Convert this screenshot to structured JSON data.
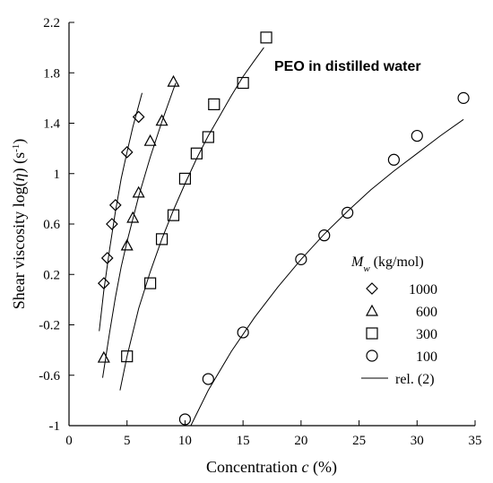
{
  "chart_data": {
    "type": "scatter",
    "title": "PEO in distilled water",
    "xlabel": {
      "main": "Concentration ",
      "var": "c",
      "unit": " (%)"
    },
    "ylabel": {
      "main": "Shear viscosity log(",
      "var": "η",
      "unit": ") (s",
      "sup": "-1",
      "close": ")"
    },
    "xlim": [
      0,
      35
    ],
    "ylim": [
      -1,
      2.2
    ],
    "x_ticks": [
      0,
      5,
      10,
      15,
      20,
      25,
      30,
      35
    ],
    "x_tick_labels": [
      "0",
      "5",
      "10",
      "15",
      "20",
      "25",
      "30",
      "35"
    ],
    "y_ticks": [
      -1,
      -0.6,
      -0.2,
      0.2,
      0.6,
      1,
      1.4,
      1.8,
      2.2
    ],
    "y_tick_labels": [
      "-1",
      "-0.6",
      "-0.2",
      "0.2",
      "0.6",
      "1",
      "1.4",
      "1.8",
      "2.2"
    ],
    "grid": false,
    "legend": {
      "position": "bottom-right",
      "title_main": "M",
      "title_sub": "w",
      "title_unit": " (kg/mol)",
      "entries": [
        {
          "label": "1000",
          "marker": "diamond"
        },
        {
          "label": "600",
          "marker": "triangle"
        },
        {
          "label": "300",
          "marker": "square"
        },
        {
          "label": "100",
          "marker": "circle"
        },
        {
          "label": "rel. (2)",
          "marker": "line"
        }
      ]
    },
    "series": [
      {
        "name": "1000",
        "marker": "diamond",
        "points": [
          [
            3.0,
            0.13
          ],
          [
            3.3,
            0.33
          ],
          [
            3.7,
            0.6
          ],
          [
            4.0,
            0.75
          ],
          [
            5.0,
            1.17
          ],
          [
            6.0,
            1.45
          ]
        ],
        "fit": [
          [
            2.6,
            -0.25
          ],
          [
            3.0,
            0.07
          ],
          [
            3.5,
            0.4
          ],
          [
            4.0,
            0.7
          ],
          [
            4.5,
            0.96
          ],
          [
            5.0,
            1.17
          ],
          [
            5.5,
            1.37
          ],
          [
            6.0,
            1.54
          ],
          [
            6.3,
            1.64
          ]
        ]
      },
      {
        "name": "600",
        "marker": "triangle",
        "points": [
          [
            3.0,
            -0.46
          ],
          [
            5.0,
            0.43
          ],
          [
            5.5,
            0.65
          ],
          [
            6.0,
            0.85
          ],
          [
            7.0,
            1.26
          ],
          [
            8.0,
            1.42
          ],
          [
            9.0,
            1.73
          ]
        ],
        "fit": [
          [
            2.9,
            -0.62
          ],
          [
            3.5,
            -0.26
          ],
          [
            4.0,
            0.02
          ],
          [
            4.5,
            0.26
          ],
          [
            5.0,
            0.46
          ],
          [
            5.5,
            0.64
          ],
          [
            6.0,
            0.82
          ],
          [
            7.0,
            1.13
          ],
          [
            8.0,
            1.41
          ],
          [
            9.0,
            1.67
          ],
          [
            9.2,
            1.72
          ]
        ]
      },
      {
        "name": "300",
        "marker": "square",
        "points": [
          [
            5.0,
            -0.45
          ],
          [
            7.0,
            0.13
          ],
          [
            8.0,
            0.48
          ],
          [
            9.0,
            0.67
          ],
          [
            10.0,
            0.96
          ],
          [
            11.0,
            1.16
          ],
          [
            12.0,
            1.29
          ],
          [
            12.5,
            1.55
          ],
          [
            15.0,
            1.72
          ],
          [
            17.0,
            2.08
          ]
        ],
        "fit": [
          [
            4.4,
            -0.72
          ],
          [
            5.0,
            -0.45
          ],
          [
            6.0,
            -0.07
          ],
          [
            7.0,
            0.22
          ],
          [
            8.0,
            0.48
          ],
          [
            9.0,
            0.71
          ],
          [
            10.0,
            0.92
          ],
          [
            11.0,
            1.12
          ],
          [
            12.0,
            1.3
          ],
          [
            13.0,
            1.46
          ],
          [
            14.0,
            1.62
          ],
          [
            15.0,
            1.77
          ],
          [
            16.0,
            1.9
          ],
          [
            16.8,
            2.0
          ]
        ]
      },
      {
        "name": "100",
        "marker": "circle",
        "points": [
          [
            10.0,
            -0.95
          ],
          [
            12.0,
            -0.63
          ],
          [
            15.0,
            -0.26
          ],
          [
            20.0,
            0.32
          ],
          [
            22.0,
            0.51
          ],
          [
            24.0,
            0.69
          ],
          [
            28.0,
            1.11
          ],
          [
            30.0,
            1.3
          ],
          [
            34.0,
            1.6
          ]
        ],
        "fit": [
          [
            10.5,
            -1.0
          ],
          [
            12.0,
            -0.72
          ],
          [
            14.0,
            -0.41
          ],
          [
            16.0,
            -0.14
          ],
          [
            18.0,
            0.1
          ],
          [
            20.0,
            0.32
          ],
          [
            22.0,
            0.52
          ],
          [
            24.0,
            0.7
          ],
          [
            26.0,
            0.87
          ],
          [
            28.0,
            1.02
          ],
          [
            30.0,
            1.16
          ],
          [
            32.0,
            1.3
          ],
          [
            34.0,
            1.43
          ]
        ]
      }
    ]
  }
}
